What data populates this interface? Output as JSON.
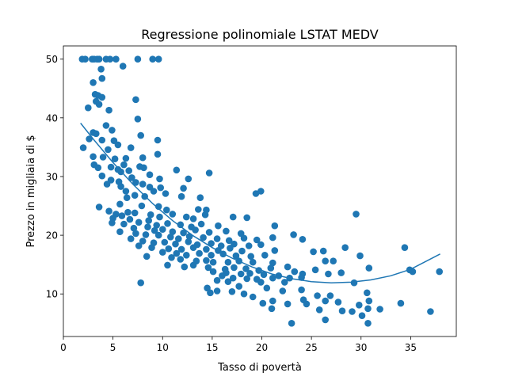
{
  "chart_data": {
    "type": "scatter",
    "title": "Regressione polinomiale LSTAT MEDV",
    "xlabel": "Tasso di povertà",
    "ylabel": "Prezzo in migliaia di $",
    "xlim": [
      0,
      39.6
    ],
    "ylim": [
      2.75,
      52.25
    ],
    "xticks": [
      0,
      5,
      10,
      15,
      20,
      25,
      30,
      35
    ],
    "yticks": [
      10,
      20,
      30,
      40,
      50
    ],
    "grid": false,
    "legend": "none",
    "colors": {
      "points": "#1f77b4",
      "curve": "#1f77b4"
    },
    "scatter_points": [
      [
        1.9,
        50
      ],
      [
        2.2,
        50
      ],
      [
        2.9,
        50
      ],
      [
        3.1,
        50
      ],
      [
        3.4,
        50
      ],
      [
        3.6,
        50
      ],
      [
        4.3,
        50
      ],
      [
        4.7,
        50
      ],
      [
        5.3,
        50
      ],
      [
        7.5,
        50
      ],
      [
        9.0,
        50
      ],
      [
        9.6,
        50
      ],
      [
        6.0,
        48.8
      ],
      [
        3.8,
        48.3
      ],
      [
        3.9,
        46.7
      ],
      [
        3.0,
        46.0
      ],
      [
        3.2,
        44.0
      ],
      [
        3.5,
        43.8
      ],
      [
        3.9,
        43.5
      ],
      [
        3.3,
        42.8
      ],
      [
        3.6,
        42.3
      ],
      [
        2.5,
        41.7
      ],
      [
        4.6,
        41.3
      ],
      [
        7.3,
        43.1
      ],
      [
        7.5,
        39.8
      ],
      [
        4.9,
        37.9
      ],
      [
        4.3,
        38.7
      ],
      [
        3.0,
        37.5
      ],
      [
        3.3,
        37.3
      ],
      [
        2.0,
        34.9
      ],
      [
        3.9,
        36.2
      ],
      [
        2.6,
        36.4
      ],
      [
        5.1,
        36.1
      ],
      [
        6.8,
        34.9
      ],
      [
        7.8,
        37.0
      ],
      [
        9.5,
        36.2
      ],
      [
        4.5,
        34.6
      ],
      [
        5.5,
        35.4
      ],
      [
        4.0,
        33.3
      ],
      [
        3.0,
        33.4
      ],
      [
        5.2,
        33.0
      ],
      [
        9.5,
        33.8
      ],
      [
        6.3,
        33.1
      ],
      [
        6.1,
        32.0
      ],
      [
        3.1,
        32.0
      ],
      [
        3.5,
        31.5
      ],
      [
        4.8,
        31.6
      ],
      [
        5.5,
        31.2
      ],
      [
        5.8,
        30.8
      ],
      [
        6.6,
        31.0
      ],
      [
        7.7,
        31.7
      ],
      [
        8.1,
        31.5
      ],
      [
        8.0,
        33.2
      ],
      [
        11.4,
        31.1
      ],
      [
        14.7,
        30.6
      ],
      [
        3.9,
        30.1
      ],
      [
        4.8,
        29.4
      ],
      [
        5.6,
        29.1
      ],
      [
        6.9,
        29.8
      ],
      [
        7.3,
        29.0
      ],
      [
        8.7,
        30.3
      ],
      [
        9.7,
        29.6
      ],
      [
        12.6,
        29.6
      ],
      [
        4.4,
        28.7
      ],
      [
        5.8,
        28.3
      ],
      [
        8.0,
        28.7
      ],
      [
        8.7,
        28.2
      ],
      [
        9.8,
        28.1
      ],
      [
        12.1,
        28.0
      ],
      [
        6.3,
        27.5
      ],
      [
        7.2,
        26.8
      ],
      [
        9.1,
        27.5
      ],
      [
        10.3,
        27.1
      ],
      [
        11.9,
        26.6
      ],
      [
        6.4,
        26.4
      ],
      [
        8.2,
        26.6
      ],
      [
        13.8,
        26.4
      ],
      [
        19.4,
        27.1
      ],
      [
        19.9,
        27.5
      ],
      [
        5.7,
        25.3
      ],
      [
        7.9,
        25.0
      ],
      [
        3.6,
        24.8
      ],
      [
        9.6,
        24.9
      ],
      [
        10.4,
        24.3
      ],
      [
        13.6,
        24.4
      ],
      [
        14.4,
        24.3
      ],
      [
        4.6,
        24.1
      ],
      [
        5.3,
        23.6
      ],
      [
        5.9,
        23.3
      ],
      [
        6.5,
        23.9
      ],
      [
        7.2,
        23.8
      ],
      [
        8.8,
        23.5
      ],
      [
        9.7,
        23.1
      ],
      [
        11.0,
        23.6
      ],
      [
        12.4,
        23.1
      ],
      [
        13.1,
        22.8
      ],
      [
        14.3,
        23.5
      ],
      [
        17.1,
        23.1
      ],
      [
        18.5,
        23.0
      ],
      [
        29.5,
        23.6
      ],
      [
        5.0,
        22.9
      ],
      [
        6.7,
        22.7
      ],
      [
        7.6,
        22.2
      ],
      [
        8.6,
        22.5
      ],
      [
        9.4,
        21.7
      ],
      [
        10.5,
        22.0
      ],
      [
        11.8,
        21.8
      ],
      [
        12.9,
        21.4
      ],
      [
        13.9,
        21.9
      ],
      [
        15.6,
        21.6
      ],
      [
        21.3,
        21.6
      ],
      [
        4.9,
        22.1
      ],
      [
        6.1,
        21.9
      ],
      [
        7.1,
        21.2
      ],
      [
        8.5,
        21.4
      ],
      [
        9.2,
        20.8
      ],
      [
        10.0,
        21.0
      ],
      [
        11.0,
        20.6
      ],
      [
        12.1,
        20.4
      ],
      [
        13.3,
        20.9
      ],
      [
        14.7,
        20.5
      ],
      [
        16.4,
        20.7
      ],
      [
        17.9,
        20.3
      ],
      [
        5.7,
        20.6
      ],
      [
        7.3,
        20.3
      ],
      [
        8.3,
        20.1
      ],
      [
        9.6,
        20.0
      ],
      [
        10.8,
        19.7
      ],
      [
        11.6,
        19.4
      ],
      [
        12.7,
        19.8
      ],
      [
        14.1,
        19.6
      ],
      [
        15.5,
        19.4
      ],
      [
        16.7,
        19.1
      ],
      [
        18.2,
        19.5
      ],
      [
        19.5,
        19.2
      ],
      [
        21.1,
        19.6
      ],
      [
        23.2,
        20.1
      ],
      [
        6.8,
        19.4
      ],
      [
        8.0,
        19.0
      ],
      [
        9.1,
        18.7
      ],
      [
        10.2,
        18.8
      ],
      [
        11.3,
        18.5
      ],
      [
        12.6,
        18.9
      ],
      [
        13.5,
        18.4
      ],
      [
        14.9,
        18.6
      ],
      [
        15.9,
        18.2
      ],
      [
        17.2,
        18.5
      ],
      [
        18.7,
        18.2
      ],
      [
        19.9,
        18.4
      ],
      [
        24.1,
        19.3
      ],
      [
        7.6,
        18.2
      ],
      [
        8.9,
        17.9
      ],
      [
        10.6,
        17.7
      ],
      [
        11.9,
        17.6
      ],
      [
        13.1,
        17.9
      ],
      [
        14.4,
        17.6
      ],
      [
        15.6,
        17.4
      ],
      [
        16.8,
        17.8
      ],
      [
        18.0,
        17.3
      ],
      [
        21.3,
        17.4
      ],
      [
        25.2,
        17.2
      ],
      [
        26.2,
        17.3
      ],
      [
        10.0,
        17.1
      ],
      [
        11.4,
        16.9
      ],
      [
        12.4,
        16.6
      ],
      [
        13.7,
        16.9
      ],
      [
        14.9,
        16.6
      ],
      [
        16.1,
        16.8
      ],
      [
        17.4,
        16.5
      ],
      [
        18.9,
        16.4
      ],
      [
        20.3,
        16.6
      ],
      [
        28.4,
        17.9
      ],
      [
        8.4,
        16.4
      ],
      [
        10.9,
        16.2
      ],
      [
        11.8,
        15.9
      ],
      [
        13.4,
        15.6
      ],
      [
        14.4,
        15.7
      ],
      [
        15.1,
        15.4
      ],
      [
        16.6,
        15.4
      ],
      [
        17.7,
        15.6
      ],
      [
        19.1,
        15.4
      ],
      [
        21.1,
        15.3
      ],
      [
        26.4,
        15.6
      ],
      [
        27.2,
        15.6
      ],
      [
        29.9,
        16.5
      ],
      [
        34.4,
        17.9
      ],
      [
        10.5,
        14.9
      ],
      [
        12.2,
        14.6
      ],
      [
        13.1,
        14.9
      ],
      [
        14.6,
        14.5
      ],
      [
        16.3,
        14.2
      ],
      [
        17.2,
        14.5
      ],
      [
        18.4,
        14.3
      ],
      [
        19.7,
        14.0
      ],
      [
        20.9,
        14.4
      ],
      [
        22.6,
        14.6
      ],
      [
        25.4,
        14.1
      ],
      [
        30.8,
        14.4
      ],
      [
        34.9,
        14.1
      ],
      [
        15.1,
        13.8
      ],
      [
        16.4,
        13.6
      ],
      [
        17.9,
        13.4
      ],
      [
        18.8,
        13.5
      ],
      [
        20.2,
        13.3
      ],
      [
        21.7,
        13.1
      ],
      [
        23.3,
        13.8
      ],
      [
        24.1,
        13.4
      ],
      [
        26.7,
        13.4
      ],
      [
        28.0,
        13.6
      ],
      [
        35.2,
        13.8
      ],
      [
        37.9,
        13.8
      ],
      [
        16.0,
        13.1
      ],
      [
        17.1,
        12.7
      ],
      [
        18.5,
        12.6
      ],
      [
        19.5,
        12.5
      ],
      [
        21.1,
        12.7
      ],
      [
        22.8,
        12.7
      ],
      [
        24.0,
        12.8
      ],
      [
        15.5,
        12.3
      ],
      [
        16.6,
        12.1
      ],
      [
        19.9,
        12.0
      ],
      [
        22.3,
        12.0
      ],
      [
        29.3,
        11.9
      ],
      [
        7.8,
        11.9
      ],
      [
        14.5,
        11.0
      ],
      [
        15.5,
        10.5
      ],
      [
        17.7,
        11.3
      ],
      [
        20.5,
        11.0
      ],
      [
        22.1,
        10.5
      ],
      [
        24.0,
        10.7
      ],
      [
        30.6,
        10.2
      ],
      [
        17.0,
        10.4
      ],
      [
        18.2,
        10.0
      ],
      [
        25.6,
        9.7
      ],
      [
        26.9,
        9.7
      ],
      [
        14.8,
        10.2
      ],
      [
        19.1,
        9.5
      ],
      [
        24.2,
        9.0
      ],
      [
        26.4,
        8.8
      ],
      [
        27.7,
        8.6
      ],
      [
        30.8,
        8.8
      ],
      [
        20.1,
        8.4
      ],
      [
        21.1,
        8.8
      ],
      [
        22.6,
        8.3
      ],
      [
        24.5,
        8.3
      ],
      [
        29.8,
        8.1
      ],
      [
        34.0,
        8.4
      ],
      [
        25.8,
        7.3
      ],
      [
        28.1,
        7.1
      ],
      [
        30.7,
        7.5
      ],
      [
        31.9,
        7.4
      ],
      [
        29.1,
        7.0
      ],
      [
        37.0,
        7.0
      ],
      [
        26.4,
        5.6
      ],
      [
        23.0,
        5.0
      ],
      [
        30.1,
        6.3
      ],
      [
        30.7,
        5.0
      ],
      [
        21.0,
        7.5
      ]
    ],
    "fitted_curve": {
      "x": [
        1.73,
        3,
        5,
        7,
        9,
        11,
        13,
        15,
        17,
        19,
        21,
        23,
        25,
        27,
        29,
        31,
        33,
        35,
        37.97
      ],
      "y": [
        39.1,
        36.4,
        32.4,
        28.7,
        25.4,
        22.5,
        20.0,
        17.9,
        16.1,
        14.6,
        13.4,
        12.6,
        12.1,
        11.9,
        12.0,
        12.4,
        13.1,
        14.2,
        16.8
      ]
    }
  }
}
